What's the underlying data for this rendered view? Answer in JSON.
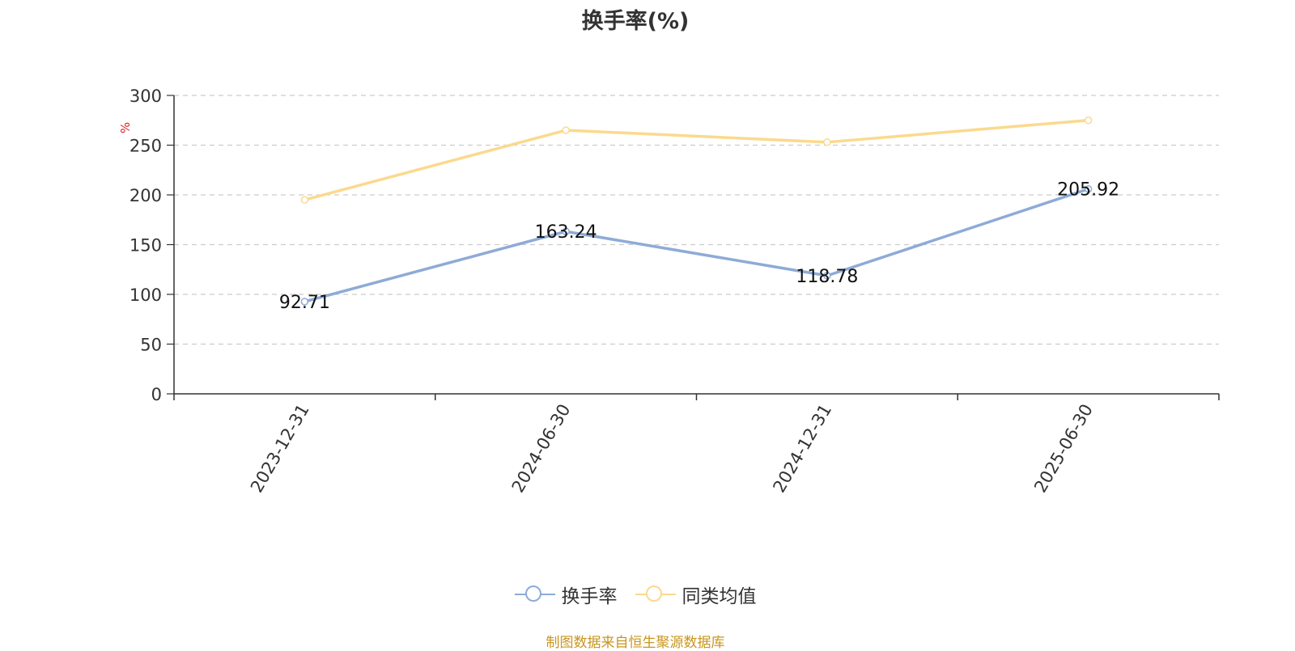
{
  "chart_data": {
    "type": "line",
    "title": "换手率(%)",
    "ylabel": "%",
    "xlabel": "",
    "categories": [
      "2023-12-31",
      "2024-06-30",
      "2024-12-31",
      "2025-06-30"
    ],
    "ylim": [
      0,
      300
    ],
    "yticks": [
      0,
      50,
      100,
      150,
      200,
      250,
      300
    ],
    "grid": true,
    "legend_position": "bottom-center",
    "series": [
      {
        "name": "换手率",
        "values": [
          92.71,
          163.24,
          118.78,
          205.92
        ],
        "color": "#8eabd6",
        "labels": [
          "92.71",
          "163.24",
          "118.78",
          "205.92"
        ]
      },
      {
        "name": "同类均值",
        "values": [
          195,
          265,
          253,
          275
        ],
        "color": "#fbd98e"
      }
    ]
  },
  "source_text": "制图数据来自恒生聚源数据库"
}
